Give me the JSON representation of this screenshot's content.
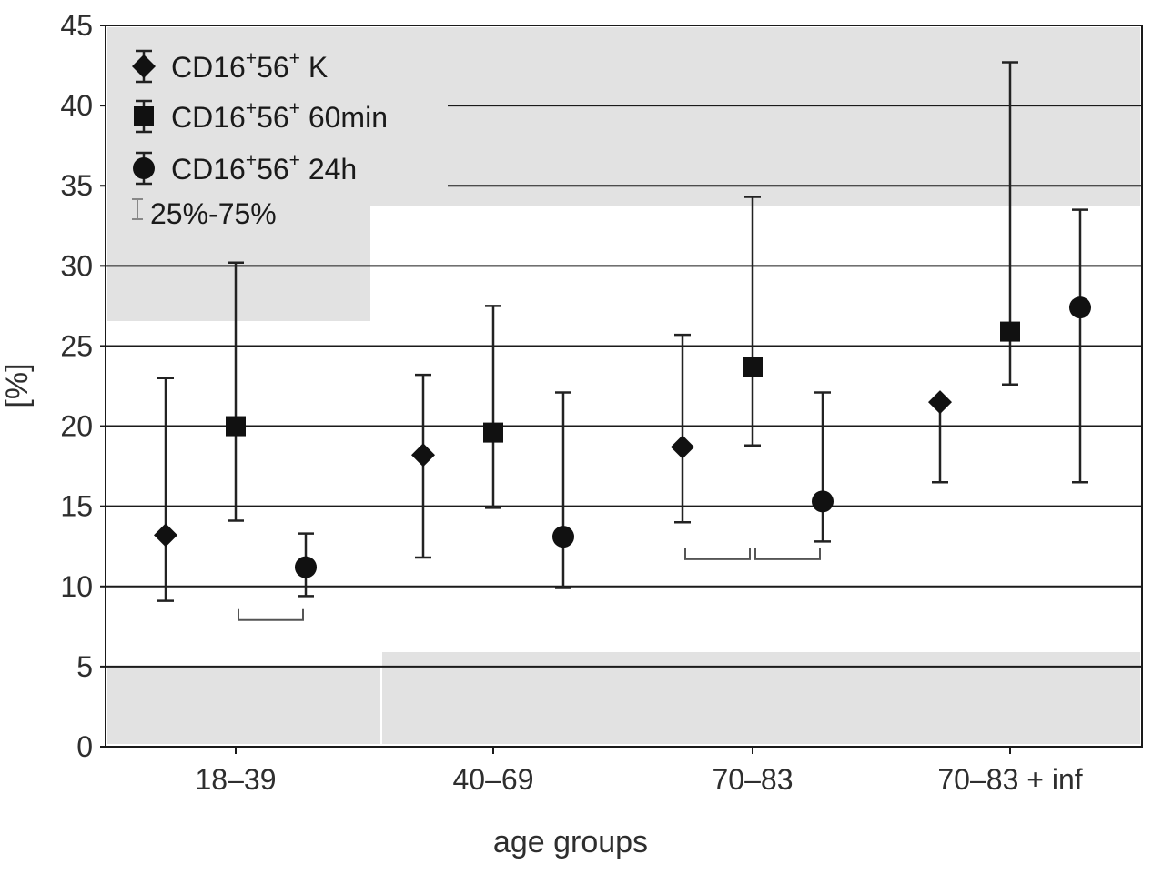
{
  "chart_data": {
    "type": "scatter",
    "xlabel": "age groups",
    "ylabel": "[%]",
    "ylim": [
      0,
      45
    ],
    "yticks": [
      0,
      5,
      10,
      15,
      20,
      25,
      30,
      35,
      40,
      45
    ],
    "categories": [
      "18–39",
      "40–69",
      "70–83",
      "70–83 + inf"
    ],
    "grid": "horizontal",
    "legend_position": "top-left",
    "series": [
      {
        "name": "CD16⁺56⁺ K",
        "name_parts": [
          "CD16",
          "+",
          "56",
          "+",
          " K"
        ],
        "marker": "diamond",
        "median": [
          13.2,
          18.2,
          18.7,
          21.5
        ],
        "q25": [
          9.1,
          11.8,
          14.0,
          16.5
        ],
        "q75": [
          23.0,
          23.2,
          25.7,
          21.5
        ]
      },
      {
        "name": "CD16⁺56⁺ 60min",
        "name_parts": [
          "CD16",
          "+",
          "56",
          "+",
          " 60min"
        ],
        "marker": "square",
        "median": [
          20.0,
          19.6,
          23.7,
          25.9
        ],
        "q25": [
          14.1,
          14.9,
          18.8,
          22.6
        ],
        "q75": [
          30.2,
          27.5,
          34.3,
          42.7
        ]
      },
      {
        "name": "CD16⁺56⁺ 24h",
        "name_parts": [
          "CD16",
          "+",
          "56",
          "+",
          " 24h"
        ],
        "marker": "circle",
        "median": [
          11.2,
          13.1,
          15.3,
          27.4
        ],
        "q25": [
          9.4,
          9.9,
          12.8,
          16.5
        ],
        "q75": [
          13.3,
          22.1,
          22.1,
          33.5
        ]
      }
    ],
    "range_legend": "25%-75%",
    "brackets": [
      {
        "from_category": 0,
        "from_offset": 0,
        "to_category": 0,
        "to_offset": 1,
        "y": 7.9
      },
      {
        "from_category": 2,
        "from_offset": -1,
        "to_category": 2,
        "to_offset": 0,
        "y": 11.7
      },
      {
        "from_category": 2,
        "from_offset": 0,
        "to_category": 2,
        "to_offset": 1,
        "y": 11.7
      }
    ]
  }
}
